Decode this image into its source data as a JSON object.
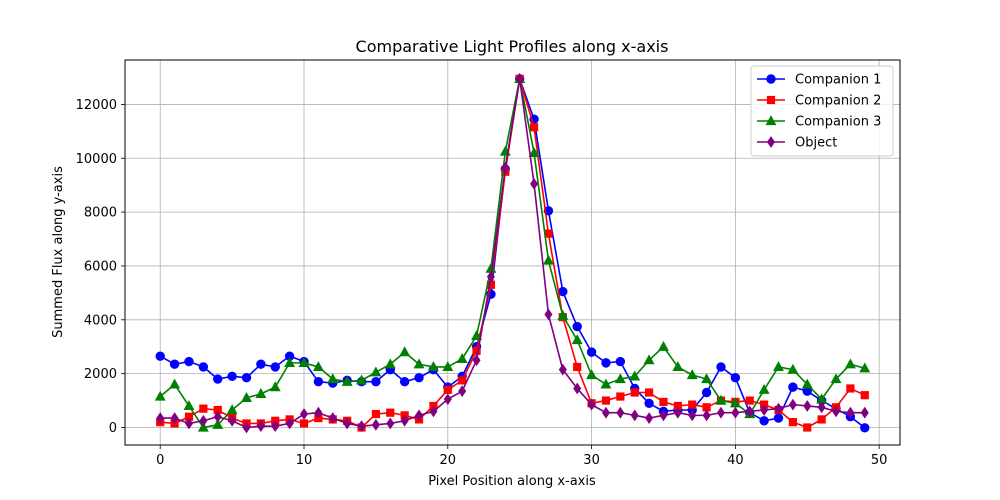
{
  "chart_data": {
    "type": "line",
    "title": "Comparative Light Profiles along x-axis",
    "xlabel": "Pixel Position along x-axis",
    "ylabel": "Summed Flux along y-axis",
    "xlim": [
      -2.45,
      51.45
    ],
    "ylim": [
      -650,
      13650
    ],
    "xticks": [
      0,
      10,
      20,
      30,
      40,
      50
    ],
    "yticks": [
      0,
      2000,
      4000,
      6000,
      8000,
      10000,
      12000
    ],
    "grid": true,
    "legend_position": "top-right",
    "x": [
      0,
      1,
      2,
      3,
      4,
      5,
      6,
      7,
      8,
      9,
      10,
      11,
      12,
      13,
      14,
      15,
      16,
      17,
      18,
      19,
      20,
      21,
      22,
      23,
      24,
      25,
      26,
      27,
      28,
      29,
      30,
      31,
      32,
      33,
      34,
      35,
      36,
      37,
      38,
      39,
      40,
      41,
      42,
      43,
      44,
      45,
      46,
      47,
      48,
      49
    ],
    "series": [
      {
        "name": "Companion 1",
        "color": "#0000ff",
        "marker": "circle",
        "values": [
          2650,
          2350,
          2450,
          2250,
          1800,
          1900,
          1850,
          2350,
          2250,
          2650,
          2450,
          1700,
          1650,
          1750,
          1700,
          1700,
          2150,
          1700,
          1850,
          2150,
          1500,
          1900,
          3000,
          4950,
          9600,
          12950,
          11450,
          8050,
          5050,
          3750,
          2800,
          2400,
          2450,
          1450,
          900,
          600,
          650,
          650,
          1300,
          2250,
          1850,
          550,
          250,
          350,
          1500,
          1350,
          1000,
          700,
          400,
          -10
        ]
      },
      {
        "name": "Companion 2",
        "color": "#ff0000",
        "marker": "square",
        "values": [
          200,
          150,
          400,
          700,
          650,
          350,
          150,
          150,
          250,
          300,
          150,
          350,
          300,
          250,
          0,
          500,
          550,
          450,
          300,
          800,
          1400,
          1750,
          2850,
          5300,
          9500,
          12950,
          11150,
          7200,
          4100,
          2250,
          900,
          1000,
          1150,
          1300,
          1300,
          950,
          800,
          850,
          750,
          1000,
          950,
          1000,
          850,
          650,
          200,
          0,
          300,
          750,
          1450,
          1200
        ]
      },
      {
        "name": "Companion 3",
        "color": "#008000",
        "marker": "triangle",
        "values": [
          1150,
          1600,
          800,
          0,
          100,
          650,
          1100,
          1250,
          1500,
          2400,
          2400,
          2250,
          1800,
          1700,
          1750,
          2050,
          2350,
          2800,
          2350,
          2250,
          2250,
          2550,
          3400,
          5900,
          10250,
          12950,
          10200,
          6200,
          4150,
          3250,
          1950,
          1600,
          1800,
          1900,
          2500,
          3000,
          2250,
          1950,
          1800,
          1000,
          900,
          500,
          1400,
          2250,
          2150,
          1600,
          1050,
          1800,
          2350,
          2200
        ]
      },
      {
        "name": "Object",
        "color": "#800080",
        "marker": "diamond",
        "values": [
          350,
          350,
          150,
          250,
          400,
          250,
          0,
          50,
          50,
          150,
          500,
          550,
          350,
          150,
          50,
          100,
          150,
          250,
          450,
          600,
          1050,
          1350,
          2500,
          5600,
          9650,
          12950,
          9050,
          4200,
          2150,
          1450,
          850,
          550,
          550,
          450,
          350,
          450,
          550,
          450,
          450,
          550,
          550,
          600,
          650,
          700,
          850,
          800,
          750,
          600,
          550,
          550
        ]
      }
    ]
  }
}
